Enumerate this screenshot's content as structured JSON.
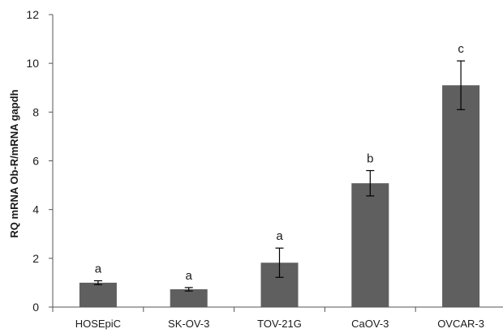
{
  "chart_data": {
    "type": "bar",
    "title": "",
    "xlabel": "",
    "ylabel": "RQ mRNA  Ob-R/mRNA gapdh",
    "ylim": [
      0,
      12
    ],
    "yticks": [
      0,
      2,
      4,
      6,
      8,
      10,
      12
    ],
    "categories": [
      "HOSEpiC",
      "SK-OV-3",
      "TOV-21G",
      "CaOV-3",
      "OVCAR-3"
    ],
    "values": [
      1.0,
      0.73,
      1.82,
      5.08,
      9.1
    ],
    "error": [
      0.08,
      0.07,
      0.6,
      0.52,
      1.0
    ],
    "significance": [
      "a",
      "a",
      "a",
      "b",
      "c"
    ],
    "bar_color": "#5f5f5f",
    "grid": false,
    "legend": "none"
  }
}
